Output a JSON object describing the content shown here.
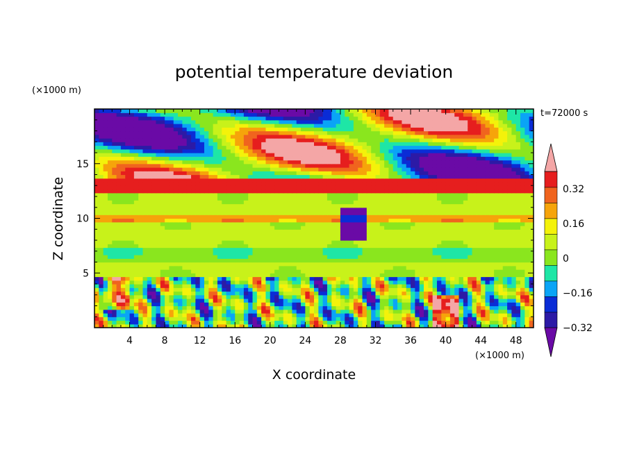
{
  "chart_data": {
    "type": "heatmap",
    "title": "potential temperature deviation",
    "time_label": "t=72000 s",
    "xlabel": "X coordinate",
    "ylabel": "Z coordinate",
    "x_unit": "(×1000 m)",
    "y_unit": "(×1000 m)",
    "xlim": [
      0,
      50
    ],
    "ylim": [
      0,
      20
    ],
    "x_ticks": [
      "4",
      "8",
      "12",
      "16",
      "20",
      "24",
      "28",
      "32",
      "36",
      "40",
      "44",
      "48"
    ],
    "y_ticks": [
      "5",
      "10",
      "15"
    ],
    "x_tick_values": [
      4,
      8,
      12,
      16,
      20,
      24,
      28,
      32,
      36,
      40,
      44,
      48
    ],
    "y_tick_values": [
      5,
      10,
      15
    ],
    "colorbar": {
      "levels": [
        -0.4,
        -0.32,
        -0.24,
        -0.16,
        -0.08,
        0,
        0.08,
        0.16,
        0.24,
        0.32,
        0.4
      ],
      "labels": [
        "0.32",
        "0.16",
        "0",
        "−0.16",
        "−0.32"
      ],
      "label_values": [
        0.32,
        0.16,
        0,
        -0.16,
        -0.32
      ],
      "colors": [
        "#6a0aa6",
        "#2c1aa6",
        "#0a2cd6",
        "#0aa4f6",
        "#1ee6a6",
        "#8ae61e",
        "#c8f21a",
        "#f4f20a",
        "#f6a40a",
        "#f0641e",
        "#e61e1e",
        "#f4a6a6"
      ],
      "extend": "both"
    }
  }
}
